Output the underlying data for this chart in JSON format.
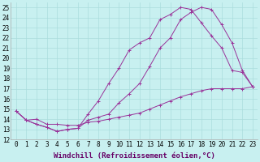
{
  "background_color": "#c8f0f0",
  "line_color": "#993399",
  "grid_color": "#aadddd",
  "xlabel": "Windchill (Refroidissement éolien,°C)",
  "xlabel_fontsize": 6.5,
  "tick_fontsize": 5.5,
  "xlim": [
    -0.5,
    23.5
  ],
  "ylim": [
    12,
    25.5
  ],
  "yticks": [
    12,
    13,
    14,
    15,
    16,
    17,
    18,
    19,
    20,
    21,
    22,
    23,
    24,
    25
  ],
  "xticks": [
    0,
    1,
    2,
    3,
    4,
    5,
    6,
    7,
    8,
    9,
    10,
    11,
    12,
    13,
    14,
    15,
    16,
    17,
    18,
    19,
    20,
    21,
    22,
    23
  ],
  "lineA_x": [
    0,
    1,
    2,
    3,
    4,
    5,
    6,
    7,
    8,
    9,
    10,
    11,
    12,
    13,
    14,
    15,
    16,
    17,
    18,
    19,
    20,
    21,
    22,
    23
  ],
  "lineA_y": [
    14.8,
    13.9,
    14.0,
    13.5,
    13.5,
    13.4,
    13.4,
    13.7,
    13.8,
    14.0,
    14.2,
    14.4,
    14.6,
    15.0,
    15.4,
    15.8,
    16.2,
    16.5,
    16.8,
    17.0,
    17.0,
    17.0,
    17.0,
    17.2
  ],
  "lineB_x": [
    0,
    1,
    2,
    3,
    4,
    5,
    6,
    7,
    8,
    9,
    10,
    11,
    12,
    13,
    14,
    15,
    16,
    17,
    18,
    19,
    20,
    21,
    22,
    23
  ],
  "lineB_y": [
    14.8,
    13.9,
    13.5,
    13.2,
    12.8,
    13.0,
    13.1,
    13.9,
    14.2,
    14.5,
    15.6,
    16.5,
    17.5,
    19.2,
    21.0,
    22.0,
    23.8,
    24.5,
    25.0,
    24.8,
    23.3,
    21.5,
    18.8,
    17.2
  ],
  "lineC_x": [
    0,
    1,
    2,
    3,
    4,
    5,
    6,
    7,
    8,
    9,
    10,
    11,
    12,
    13,
    14,
    15,
    16,
    17,
    18,
    19,
    20,
    21,
    22,
    23
  ],
  "lineC_y": [
    14.8,
    13.9,
    13.5,
    13.2,
    12.8,
    13.0,
    13.1,
    14.5,
    15.8,
    17.5,
    19.0,
    20.8,
    21.5,
    22.0,
    23.8,
    24.3,
    25.0,
    24.8,
    23.5,
    22.2,
    21.0,
    18.8,
    18.6,
    17.2
  ]
}
